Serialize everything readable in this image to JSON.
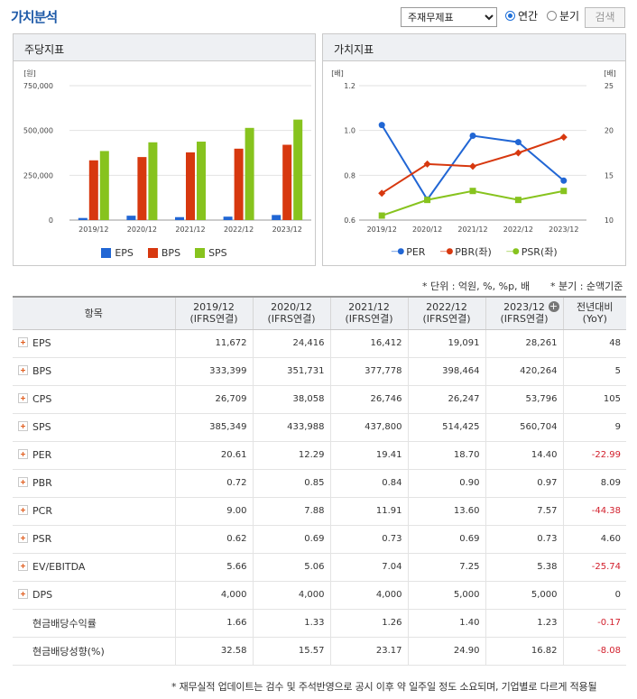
{
  "header": {
    "title": "가치분석",
    "select_value": "주재무제표",
    "radio_annual": "연간",
    "radio_quarter": "분기",
    "search_label": "검색"
  },
  "left_panel": {
    "title": "주당지표",
    "unit": "[원]"
  },
  "right_panel": {
    "title": "가치지표",
    "unit_left": "[배]",
    "unit_right": "[배]"
  },
  "chart_data": [
    {
      "type": "bar",
      "title": "주당지표",
      "categories": [
        "2019/12",
        "2020/12",
        "2021/12",
        "2022/12",
        "2023/12"
      ],
      "ylim": [
        0,
        750000
      ],
      "yticks": [
        "0",
        "250,000",
        "500,000",
        "750,000"
      ],
      "ytick_values": [
        0,
        250000,
        500000,
        750000
      ],
      "grid": true,
      "legend": "bottom",
      "series": [
        {
          "name": "EPS",
          "color": "#2166d4",
          "values": [
            11672,
            24416,
            16412,
            19091,
            28261
          ]
        },
        {
          "name": "BPS",
          "color": "#d7380f",
          "values": [
            333399,
            351731,
            377778,
            398464,
            420264
          ]
        },
        {
          "name": "SPS",
          "color": "#87c31e",
          "values": [
            385349,
            433988,
            437800,
            514425,
            560704
          ]
        }
      ]
    },
    {
      "type": "line",
      "title": "가치지표",
      "categories": [
        "2019/12",
        "2020/12",
        "2021/12",
        "2022/12",
        "2023/12"
      ],
      "ylim_left": [
        0.6,
        1.2
      ],
      "yticks_left": [
        "0.6",
        "0.8",
        "1.0",
        "1.2"
      ],
      "ytick_values_left": [
        0.6,
        0.8,
        1.0,
        1.2
      ],
      "ylim_right": [
        10,
        25
      ],
      "yticks_right": [
        "10",
        "15",
        "20",
        "25"
      ],
      "ytick_values_right": [
        10,
        15,
        20,
        25
      ],
      "grid": true,
      "legend": "bottom",
      "series": [
        {
          "name": "PER",
          "axis": "right",
          "color": "#2166d4",
          "marker": "circle",
          "values": [
            20.61,
            12.29,
            19.41,
            18.7,
            14.4
          ]
        },
        {
          "name": "PBR(좌)",
          "axis": "left",
          "color": "#d7380f",
          "marker": "diamond",
          "values": [
            0.72,
            0.85,
            0.84,
            0.9,
            0.97
          ]
        },
        {
          "name": "PSR(좌)",
          "axis": "left",
          "color": "#87c31e",
          "marker": "square",
          "values": [
            0.62,
            0.69,
            0.73,
            0.69,
            0.73
          ]
        }
      ]
    }
  ],
  "notes": {
    "unit": "* 단위 : 억원, %, %p, 배",
    "quarter": "* 분기 : 순액기준",
    "footer": "* 재무실적 업데이트는 검수 및 주석반영으로 공시 이후 약 일주일 정도 소요되며, 기업별로 다르게 적용될"
  },
  "table": {
    "header_item": "항목",
    "columns": [
      {
        "year": "2019/12",
        "basis": "(IFRS연결)"
      },
      {
        "year": "2020/12",
        "basis": "(IFRS연결)"
      },
      {
        "year": "2021/12",
        "basis": "(IFRS연결)"
      },
      {
        "year": "2022/12",
        "basis": "(IFRS연결)"
      },
      {
        "year": "2023/12",
        "basis": "(IFRS연결)"
      }
    ],
    "yoy_label": "전년대비",
    "yoy_sub": "(YoY)",
    "rows": [
      {
        "label": "EPS",
        "expand": true,
        "values": [
          "11,672",
          "24,416",
          "16,412",
          "19,091",
          "28,261"
        ],
        "yoy": "48",
        "neg": false
      },
      {
        "label": "BPS",
        "expand": true,
        "values": [
          "333,399",
          "351,731",
          "377,778",
          "398,464",
          "420,264"
        ],
        "yoy": "5",
        "neg": false
      },
      {
        "label": "CPS",
        "expand": true,
        "values": [
          "26,709",
          "38,058",
          "26,746",
          "26,247",
          "53,796"
        ],
        "yoy": "105",
        "neg": false
      },
      {
        "label": "SPS",
        "expand": true,
        "values": [
          "385,349",
          "433,988",
          "437,800",
          "514,425",
          "560,704"
        ],
        "yoy": "9",
        "neg": false
      },
      {
        "label": "PER",
        "expand": true,
        "values": [
          "20.61",
          "12.29",
          "19.41",
          "18.70",
          "14.40"
        ],
        "yoy": "-22.99",
        "neg": true
      },
      {
        "label": "PBR",
        "expand": true,
        "values": [
          "0.72",
          "0.85",
          "0.84",
          "0.90",
          "0.97"
        ],
        "yoy": "8.09",
        "neg": false
      },
      {
        "label": "PCR",
        "expand": true,
        "values": [
          "9.00",
          "7.88",
          "11.91",
          "13.60",
          "7.57"
        ],
        "yoy": "-44.38",
        "neg": true
      },
      {
        "label": "PSR",
        "expand": true,
        "values": [
          "0.62",
          "0.69",
          "0.73",
          "0.69",
          "0.73"
        ],
        "yoy": "4.60",
        "neg": false
      },
      {
        "label": "EV/EBITDA",
        "expand": true,
        "values": [
          "5.66",
          "5.06",
          "7.04",
          "7.25",
          "5.38"
        ],
        "yoy": "-25.74",
        "neg": true
      },
      {
        "label": "DPS",
        "expand": true,
        "values": [
          "4,000",
          "4,000",
          "4,000",
          "5,000",
          "5,000"
        ],
        "yoy": "0",
        "neg": false
      },
      {
        "label": "현금배당수익률",
        "expand": false,
        "values": [
          "1.66",
          "1.33",
          "1.26",
          "1.40",
          "1.23"
        ],
        "yoy": "-0.17",
        "neg": true
      },
      {
        "label": "현금배당성향(%)",
        "expand": false,
        "values": [
          "32.58",
          "15.57",
          "23.17",
          "24.90",
          "16.82"
        ],
        "yoy": "-8.08",
        "neg": true
      }
    ]
  }
}
